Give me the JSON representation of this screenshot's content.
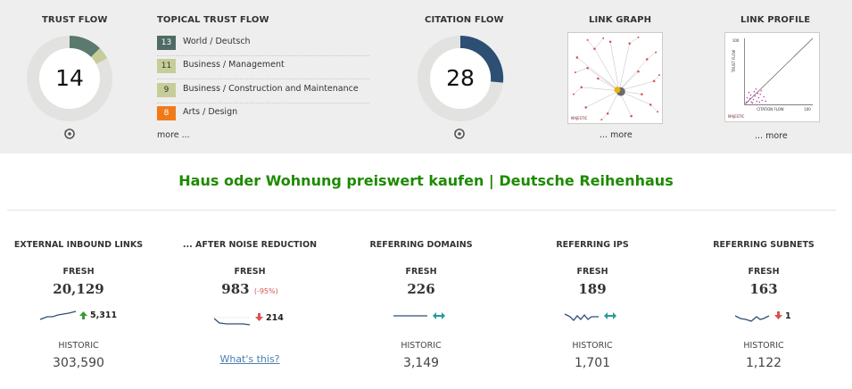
{
  "top": {
    "trust_flow": {
      "title": "TRUST FLOW",
      "value": "14",
      "color": "#5a7a6e"
    },
    "topical": {
      "title": "TOPICAL TRUST FLOW",
      "items": [
        {
          "score": "13",
          "label": "World / Deutsch",
          "bg": "#4f6b66",
          "fg": "#ffffff"
        },
        {
          "score": "11",
          "label": "Business / Management",
          "bg": "#c6cd98",
          "fg": "#333333"
        },
        {
          "score": "9",
          "label": "Business / Construction and Maintenance",
          "bg": "#c6cd98",
          "fg": "#333333"
        },
        {
          "score": "8",
          "label": "Arts / Design",
          "bg": "#f07a1a",
          "fg": "#ffffff"
        }
      ],
      "more": "more ..."
    },
    "citation_flow": {
      "title": "CITATION FLOW",
      "value": "28",
      "color": "#2c4f73"
    },
    "link_graph": {
      "title": "LINK GRAPH",
      "more": "... more",
      "brand": "MAJESTIC"
    },
    "link_profile": {
      "title": "LINK PROFILE",
      "more": "... more",
      "y_axis": "TRUST FLOW",
      "x_axis": "CITATION FLOW",
      "max_y": "100",
      "max_x": "100",
      "brand": "MAJESTIC"
    }
  },
  "site_title": "Haus oder Wohnung preiswert kaufen | Deutsche Reihenhaus",
  "metrics": [
    {
      "title": "EXTERNAL INBOUND LINKS",
      "fresh_label": "FRESH",
      "fresh": "20,129",
      "delta": "5,311",
      "trend": "up",
      "historic_label": "HISTORIC",
      "historic": "303,590"
    },
    {
      "title": "... AFTER NOISE REDUCTION",
      "fresh_label": "FRESH",
      "fresh": "983",
      "pct": "(-95%)",
      "delta": "214",
      "trend": "down",
      "link": "What's this?"
    },
    {
      "title": "REFERRING DOMAINS",
      "fresh_label": "FRESH",
      "fresh": "226",
      "delta": "",
      "trend": "flat",
      "historic_label": "HISTORIC",
      "historic": "3,149"
    },
    {
      "title": "REFERRING IPS",
      "fresh_label": "FRESH",
      "fresh": "189",
      "delta": "",
      "trend": "flat",
      "historic_label": "HISTORIC",
      "historic": "1,701"
    },
    {
      "title": "REFERRING SUBNETS",
      "fresh_label": "FRESH",
      "fresh": "163",
      "delta": "1",
      "trend": "down",
      "historic_label": "HISTORIC",
      "historic": "1,122"
    }
  ]
}
